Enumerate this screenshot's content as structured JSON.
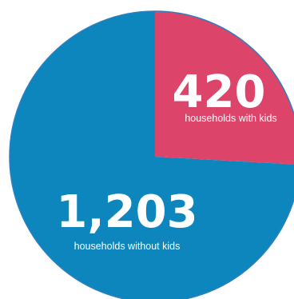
{
  "chart_data": {
    "type": "pie",
    "title": "",
    "slices": [
      {
        "label": "households with kids",
        "value": 420,
        "display_value": "420",
        "color": "#dc4569"
      },
      {
        "label": "households without kids",
        "value": 1203,
        "display_value": "1,203",
        "color": "#0d86be"
      }
    ],
    "outline_color": "#2b7fc1",
    "legend": "none",
    "labels": "inside-slices"
  }
}
